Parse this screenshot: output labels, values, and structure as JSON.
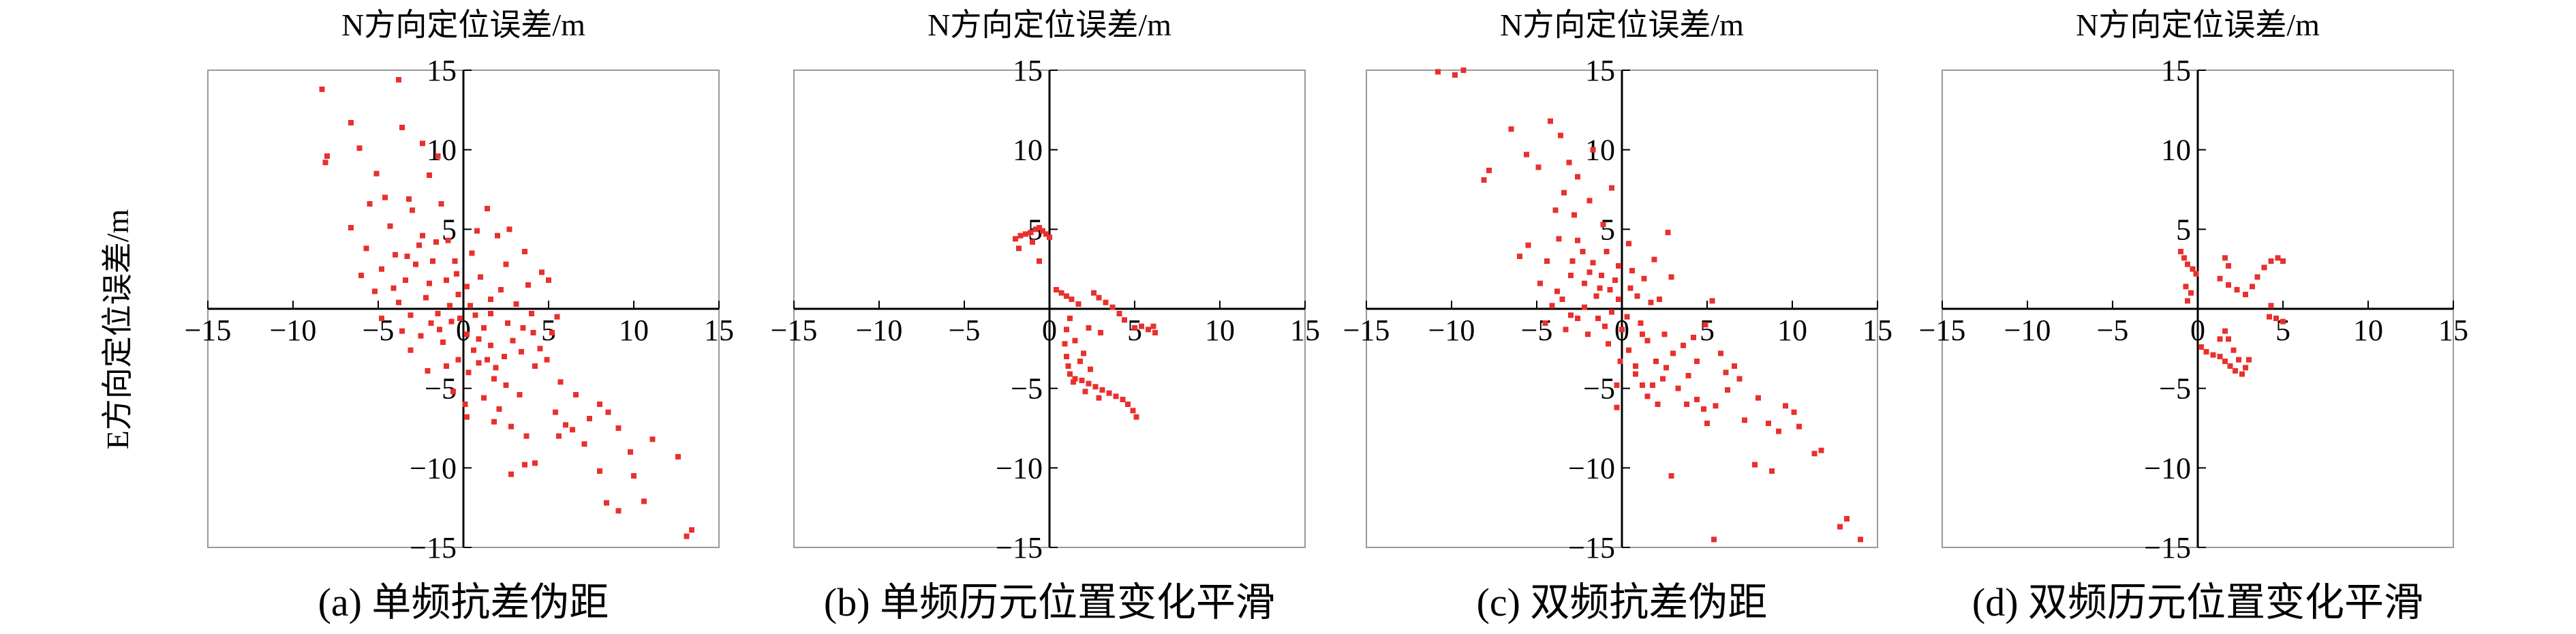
{
  "figure": {
    "y_axis_title": "E方向定位误差/m"
  },
  "chart_data": [
    {
      "type": "scatter",
      "panel": "(a)",
      "title": "N方向定位误差/m",
      "caption": "(a) 单频抗差伪距",
      "xlim": [
        -15,
        15
      ],
      "ylim": [
        -15,
        15
      ],
      "xticks": [
        -15,
        -10,
        -5,
        0,
        5,
        10,
        15
      ],
      "yticks": [
        15,
        10,
        5,
        0,
        -5,
        -10,
        -15
      ],
      "marker_color": "#e8302e",
      "points": [
        [
          -8.3,
          13.8
        ],
        [
          -8.0,
          9.6
        ],
        [
          -8.1,
          9.2
        ],
        [
          -6.6,
          11.7
        ],
        [
          -6.1,
          10.1
        ],
        [
          -3.8,
          14.4
        ],
        [
          -3.6,
          11.4
        ],
        [
          -5.1,
          8.5
        ],
        [
          -5.5,
          6.6
        ],
        [
          -4.6,
          7.0
        ],
        [
          -3.2,
          6.9
        ],
        [
          -2.4,
          10.4
        ],
        [
          -2.0,
          8.4
        ],
        [
          -1.5,
          9.6
        ],
        [
          -6.6,
          5.1
        ],
        [
          -4.3,
          5.2
        ],
        [
          -5.7,
          3.8
        ],
        [
          -6.0,
          2.1
        ],
        [
          -4.8,
          2.5
        ],
        [
          -4.0,
          3.4
        ],
        [
          -3.0,
          6.2
        ],
        [
          -2.4,
          4.6
        ],
        [
          -1.3,
          6.6
        ],
        [
          -1.8,
          3.0
        ],
        [
          -0.9,
          4.3
        ],
        [
          -0.5,
          3.0
        ],
        [
          -3.4,
          1.8
        ],
        [
          -2.8,
          2.8
        ],
        [
          -1.0,
          1.8
        ],
        [
          -0.3,
          0.9
        ],
        [
          -3.8,
          0.4
        ],
        [
          -2.2,
          0.7
        ],
        [
          -1.5,
          -0.3
        ],
        [
          -0.7,
          -0.8
        ],
        [
          -4.8,
          -0.6
        ],
        [
          -3.6,
          -1.4
        ],
        [
          -2.5,
          -1.7
        ],
        [
          -1.9,
          -0.9
        ],
        [
          -1.2,
          -2.1
        ],
        [
          -3.1,
          -2.6
        ],
        [
          0.2,
          -1.6
        ],
        [
          0.6,
          -2.6
        ],
        [
          1.2,
          -1.2
        ],
        [
          1.6,
          -2.3
        ],
        [
          0.9,
          -3.4
        ],
        [
          0.3,
          -4.0
        ],
        [
          1.8,
          -4.4
        ],
        [
          1.2,
          -5.6
        ],
        [
          2.4,
          -3.0
        ],
        [
          2.9,
          -2.0
        ],
        [
          3.5,
          -1.2
        ],
        [
          2.5,
          -4.8
        ],
        [
          3.3,
          -5.4
        ],
        [
          4.2,
          -3.6
        ],
        [
          4.5,
          -2.5
        ],
        [
          5.2,
          -1.5
        ],
        [
          5.5,
          -0.5
        ],
        [
          3.8,
          1.5
        ],
        [
          2.5,
          2.8
        ],
        [
          2.0,
          4.6
        ],
        [
          1.4,
          6.3
        ],
        [
          0.8,
          4.9
        ],
        [
          0.5,
          3.5
        ],
        [
          1.0,
          2.0
        ],
        [
          1.6,
          0.6
        ],
        [
          2.2,
          1.2
        ],
        [
          3.1,
          0.3
        ],
        [
          4.0,
          -0.3
        ],
        [
          0.2,
          -6.8
        ],
        [
          0.1,
          -6.0
        ],
        [
          1.8,
          -7.1
        ],
        [
          2.8,
          -7.4
        ],
        [
          3.7,
          -8.0
        ],
        [
          4.2,
          -9.7
        ],
        [
          2.8,
          -10.4
        ],
        [
          3.6,
          -9.8
        ],
        [
          5.4,
          -6.5
        ],
        [
          6.0,
          -7.3
        ],
        [
          6.4,
          -7.6
        ],
        [
          5.6,
          -8.0
        ],
        [
          7.1,
          -8.5
        ],
        [
          8.0,
          -6.0
        ],
        [
          8.5,
          -6.5
        ],
        [
          9.1,
          -7.5
        ],
        [
          9.8,
          -9.0
        ],
        [
          8.0,
          -10.2
        ],
        [
          8.4,
          -12.2
        ],
        [
          9.1,
          -12.7
        ],
        [
          10.0,
          -10.5
        ],
        [
          10.6,
          -12.1
        ],
        [
          11.1,
          -8.2
        ],
        [
          12.6,
          -9.3
        ],
        [
          13.4,
          -13.9
        ],
        [
          13.1,
          -14.3
        ],
        [
          5.0,
          1.8
        ],
        [
          4.6,
          2.3
        ],
        [
          3.6,
          3.6
        ],
        [
          2.7,
          5.0
        ],
        [
          -0.3,
          -3.2
        ],
        [
          -1.0,
          -3.6
        ],
        [
          -2.1,
          -3.9
        ],
        [
          -0.6,
          -5.2
        ],
        [
          1.4,
          -3.2
        ],
        [
          2.1,
          -6.3
        ],
        [
          -0.4,
          2.2
        ],
        [
          0.2,
          1.4
        ],
        [
          -1.6,
          4.2
        ],
        [
          -2.6,
          4.0
        ],
        [
          -3.3,
          3.3
        ],
        [
          -0.8,
          0.2
        ],
        [
          -2.0,
          1.6
        ],
        [
          -3.1,
          -0.4
        ],
        [
          -4.1,
          1.3
        ],
        [
          -5.2,
          1.1
        ],
        [
          1.6,
          -0.3
        ],
        [
          2.6,
          -0.9
        ],
        [
          3.4,
          -2.7
        ],
        [
          4.1,
          -1.5
        ],
        [
          4.9,
          -3.2
        ],
        [
          5.7,
          -4.6
        ],
        [
          6.6,
          -5.4
        ],
        [
          7.4,
          -6.9
        ],
        [
          0.7,
          -0.4
        ],
        [
          0.4,
          0.2
        ],
        [
          -0.2,
          -0.6
        ],
        [
          -1.4,
          -1.3
        ],
        [
          0.9,
          -1.9
        ],
        [
          1.9,
          -3.7
        ]
      ]
    },
    {
      "type": "scatter",
      "panel": "(b)",
      "title": "N方向定位误差/m",
      "caption": "(b) 单频历元位置变化平滑",
      "xlim": [
        -15,
        15
      ],
      "ylim": [
        -15,
        15
      ],
      "xticks": [
        -15,
        -10,
        -5,
        0,
        5,
        10,
        15
      ],
      "yticks": [
        15,
        10,
        5,
        0,
        -5,
        -10,
        -15
      ],
      "marker_color": "#e8302e",
      "points": [
        [
          -2.0,
          4.4
        ],
        [
          -1.7,
          4.6
        ],
        [
          -1.4,
          4.7
        ],
        [
          -1.1,
          4.8
        ],
        [
          -0.8,
          5.0
        ],
        [
          -0.6,
          5.1
        ],
        [
          -0.4,
          4.9
        ],
        [
          -0.2,
          4.7
        ],
        [
          0.0,
          4.5
        ],
        [
          -1.0,
          4.2
        ],
        [
          -0.6,
          3.0
        ],
        [
          -1.8,
          3.8
        ],
        [
          0.4,
          1.2
        ],
        [
          0.7,
          1.0
        ],
        [
          1.0,
          0.8
        ],
        [
          1.3,
          0.6
        ],
        [
          1.7,
          0.3
        ],
        [
          1.2,
          -0.6
        ],
        [
          1.0,
          -1.3
        ],
        [
          0.9,
          -2.2
        ],
        [
          1.0,
          -3.0
        ],
        [
          1.1,
          -3.6
        ],
        [
          1.2,
          -4.1
        ],
        [
          1.5,
          -4.4
        ],
        [
          1.9,
          -4.5
        ],
        [
          2.3,
          -4.7
        ],
        [
          2.7,
          -4.9
        ],
        [
          3.1,
          -5.1
        ],
        [
          3.5,
          -5.3
        ],
        [
          3.9,
          -5.5
        ],
        [
          4.3,
          -5.7
        ],
        [
          4.6,
          -6.0
        ],
        [
          4.9,
          -6.4
        ],
        [
          5.1,
          -6.8
        ],
        [
          2.4,
          -3.8
        ],
        [
          2.0,
          -2.8
        ],
        [
          1.5,
          -2.0
        ],
        [
          2.6,
          1.0
        ],
        [
          2.9,
          0.7
        ],
        [
          3.3,
          0.4
        ],
        [
          3.7,
          0.1
        ],
        [
          4.1,
          -0.3
        ],
        [
          4.4,
          -0.7
        ],
        [
          5.0,
          -1.2
        ],
        [
          5.4,
          -1.1
        ],
        [
          5.8,
          -1.3
        ],
        [
          6.2,
          -1.5
        ],
        [
          6.1,
          -1.1
        ],
        [
          3.0,
          -1.5
        ],
        [
          2.3,
          -1.2
        ],
        [
          1.8,
          -3.3
        ],
        [
          1.4,
          -4.6
        ],
        [
          2.1,
          -5.2
        ],
        [
          2.9,
          -5.6
        ]
      ]
    },
    {
      "type": "scatter",
      "panel": "(c)",
      "title": "N方向定位误差/m",
      "caption": "(c) 双频抗差伪距",
      "xlim": [
        -15,
        15
      ],
      "ylim": [
        -15,
        15
      ],
      "xticks": [
        -15,
        -10,
        -5,
        0,
        5,
        10,
        15
      ],
      "yticks": [
        15,
        10,
        5,
        0,
        -5,
        -10,
        -15
      ],
      "marker_color": "#e8302e",
      "points": [
        [
          -10.8,
          14.9
        ],
        [
          -9.8,
          14.7
        ],
        [
          -9.3,
          15.0
        ],
        [
          -6.5,
          11.3
        ],
        [
          -4.2,
          11.8
        ],
        [
          -3.6,
          10.9
        ],
        [
          -7.8,
          8.7
        ],
        [
          -8.1,
          8.1
        ],
        [
          -5.6,
          9.7
        ],
        [
          -4.9,
          8.9
        ],
        [
          -3.1,
          9.2
        ],
        [
          -2.6,
          8.3
        ],
        [
          -1.7,
          10.0
        ],
        [
          -3.4,
          7.3
        ],
        [
          -3.9,
          6.2
        ],
        [
          -2.8,
          5.9
        ],
        [
          -1.9,
          6.8
        ],
        [
          -0.6,
          7.6
        ],
        [
          -5.5,
          4.0
        ],
        [
          -6.0,
          3.3
        ],
        [
          -4.4,
          3.0
        ],
        [
          -3.7,
          4.4
        ],
        [
          -2.6,
          4.3
        ],
        [
          -1.7,
          2.9
        ],
        [
          -0.9,
          3.6
        ],
        [
          0.4,
          4.1
        ],
        [
          -4.8,
          1.6
        ],
        [
          -3.8,
          1.1
        ],
        [
          -3.0,
          2.1
        ],
        [
          -2.2,
          1.6
        ],
        [
          -1.3,
          1.3
        ],
        [
          -0.4,
          1.8
        ],
        [
          0.5,
          1.3
        ],
        [
          1.3,
          1.9
        ],
        [
          -4.1,
          0.2
        ],
        [
          -3.0,
          -0.4
        ],
        [
          -2.2,
          0.1
        ],
        [
          -1.4,
          -0.6
        ],
        [
          -0.6,
          -0.2
        ],
        [
          0.3,
          -0.5
        ],
        [
          1.1,
          -0.9
        ],
        [
          1.7,
          0.4
        ],
        [
          -2.0,
          -1.6
        ],
        [
          -0.8,
          -2.2
        ],
        [
          0.4,
          -2.6
        ],
        [
          1.5,
          -2.0
        ],
        [
          2.5,
          -1.6
        ],
        [
          3.0,
          -2.8
        ],
        [
          2.0,
          -3.3
        ],
        [
          0.8,
          -4.1
        ],
        [
          -0.3,
          -4.8
        ],
        [
          -0.3,
          -6.2
        ],
        [
          1.5,
          -5.5
        ],
        [
          2.4,
          -4.4
        ],
        [
          3.3,
          -5.0
        ],
        [
          3.9,
          -4.2
        ],
        [
          4.4,
          -3.3
        ],
        [
          4.2,
          -1.8
        ],
        [
          4.9,
          -1.0
        ],
        [
          5.3,
          0.5
        ],
        [
          2.7,
          4.8
        ],
        [
          1.9,
          3.1
        ],
        [
          2.9,
          2.0
        ],
        [
          3.8,
          -6.0
        ],
        [
          4.4,
          -5.7
        ],
        [
          4.8,
          -6.3
        ],
        [
          5.5,
          -6.1
        ],
        [
          5.0,
          -7.2
        ],
        [
          6.2,
          -5.1
        ],
        [
          7.2,
          -7.0
        ],
        [
          8.0,
          -5.6
        ],
        [
          8.6,
          -7.2
        ],
        [
          9.2,
          -7.7
        ],
        [
          9.6,
          -6.1
        ],
        [
          10.4,
          -7.4
        ],
        [
          10.1,
          -6.5
        ],
        [
          7.8,
          -9.8
        ],
        [
          8.8,
          -10.2
        ],
        [
          11.3,
          -9.1
        ],
        [
          11.7,
          -8.9
        ],
        [
          12.8,
          -13.7
        ],
        [
          13.2,
          -13.2
        ],
        [
          14.0,
          -14.5
        ],
        [
          5.4,
          -14.5
        ],
        [
          2.9,
          -10.5
        ],
        [
          6.1,
          -4.0
        ],
        [
          6.6,
          -3.6
        ],
        [
          6.9,
          -4.4
        ],
        [
          5.8,
          -2.8
        ],
        [
          2.1,
          -6.0
        ],
        [
          1.2,
          -4.8
        ],
        [
          -1.1,
          5.3
        ],
        [
          -2.3,
          3.6
        ],
        [
          -1.5,
          0.8
        ],
        [
          -0.2,
          0.6
        ],
        [
          0.9,
          0.8
        ],
        [
          0.6,
          2.4
        ],
        [
          -0.7,
          1.2
        ],
        [
          -1.9,
          2.3
        ],
        [
          -2.9,
          3.0
        ],
        [
          -3.3,
          -1.3
        ],
        [
          -4.5,
          -0.9
        ],
        [
          0.0,
          -1.3
        ],
        [
          0.8,
          -3.6
        ],
        [
          1.8,
          -4.8
        ],
        [
          2.6,
          -3.7
        ],
        [
          3.6,
          -2.3
        ],
        [
          1.2,
          -1.6
        ],
        [
          -0.1,
          -3.3
        ],
        [
          2.2,
          0.6
        ],
        [
          -1.0,
          -1.1
        ],
        [
          -2.6,
          -0.6
        ],
        [
          -3.5,
          0.6
        ],
        [
          -0.2,
          2.7
        ],
        [
          -1.2,
          2.1
        ]
      ]
    },
    {
      "type": "scatter",
      "panel": "(d)",
      "title": "N方向定位误差/m",
      "caption": "(d) 双频历元位置变化平滑",
      "xlim": [
        -15,
        15
      ],
      "ylim": [
        -15,
        15
      ],
      "xticks": [
        -15,
        -10,
        -5,
        0,
        5,
        10,
        15
      ],
      "yticks": [
        15,
        10,
        5,
        0,
        -5,
        -10,
        -15
      ],
      "marker_color": "#e8302e",
      "points": [
        [
          -1.0,
          3.6
        ],
        [
          -0.8,
          3.2
        ],
        [
          -0.6,
          2.8
        ],
        [
          -0.3,
          2.5
        ],
        [
          -0.1,
          2.2
        ],
        [
          -0.7,
          1.4
        ],
        [
          -0.4,
          1.0
        ],
        [
          -0.6,
          0.5
        ],
        [
          1.6,
          3.2
        ],
        [
          1.8,
          2.7
        ],
        [
          1.3,
          1.9
        ],
        [
          1.8,
          1.5
        ],
        [
          2.3,
          1.2
        ],
        [
          2.8,
          0.9
        ],
        [
          3.2,
          1.4
        ],
        [
          3.5,
          2.0
        ],
        [
          3.9,
          2.6
        ],
        [
          4.3,
          3.0
        ],
        [
          4.7,
          3.2
        ],
        [
          5.0,
          3.0
        ],
        [
          0.2,
          -2.4
        ],
        [
          0.5,
          -2.7
        ],
        [
          0.9,
          -2.9
        ],
        [
          1.3,
          -3.0
        ],
        [
          1.6,
          -3.3
        ],
        [
          1.9,
          -3.6
        ],
        [
          2.2,
          -3.9
        ],
        [
          2.6,
          -4.1
        ],
        [
          2.4,
          -3.2
        ],
        [
          2.1,
          -2.6
        ],
        [
          1.8,
          -1.9
        ],
        [
          1.6,
          -1.4
        ],
        [
          1.3,
          -1.9
        ],
        [
          2.8,
          -3.7
        ],
        [
          3.0,
          -3.2
        ],
        [
          4.2,
          -0.5
        ],
        [
          4.6,
          -0.6
        ],
        [
          5.0,
          -0.8
        ],
        [
          4.3,
          0.2
        ]
      ]
    }
  ]
}
